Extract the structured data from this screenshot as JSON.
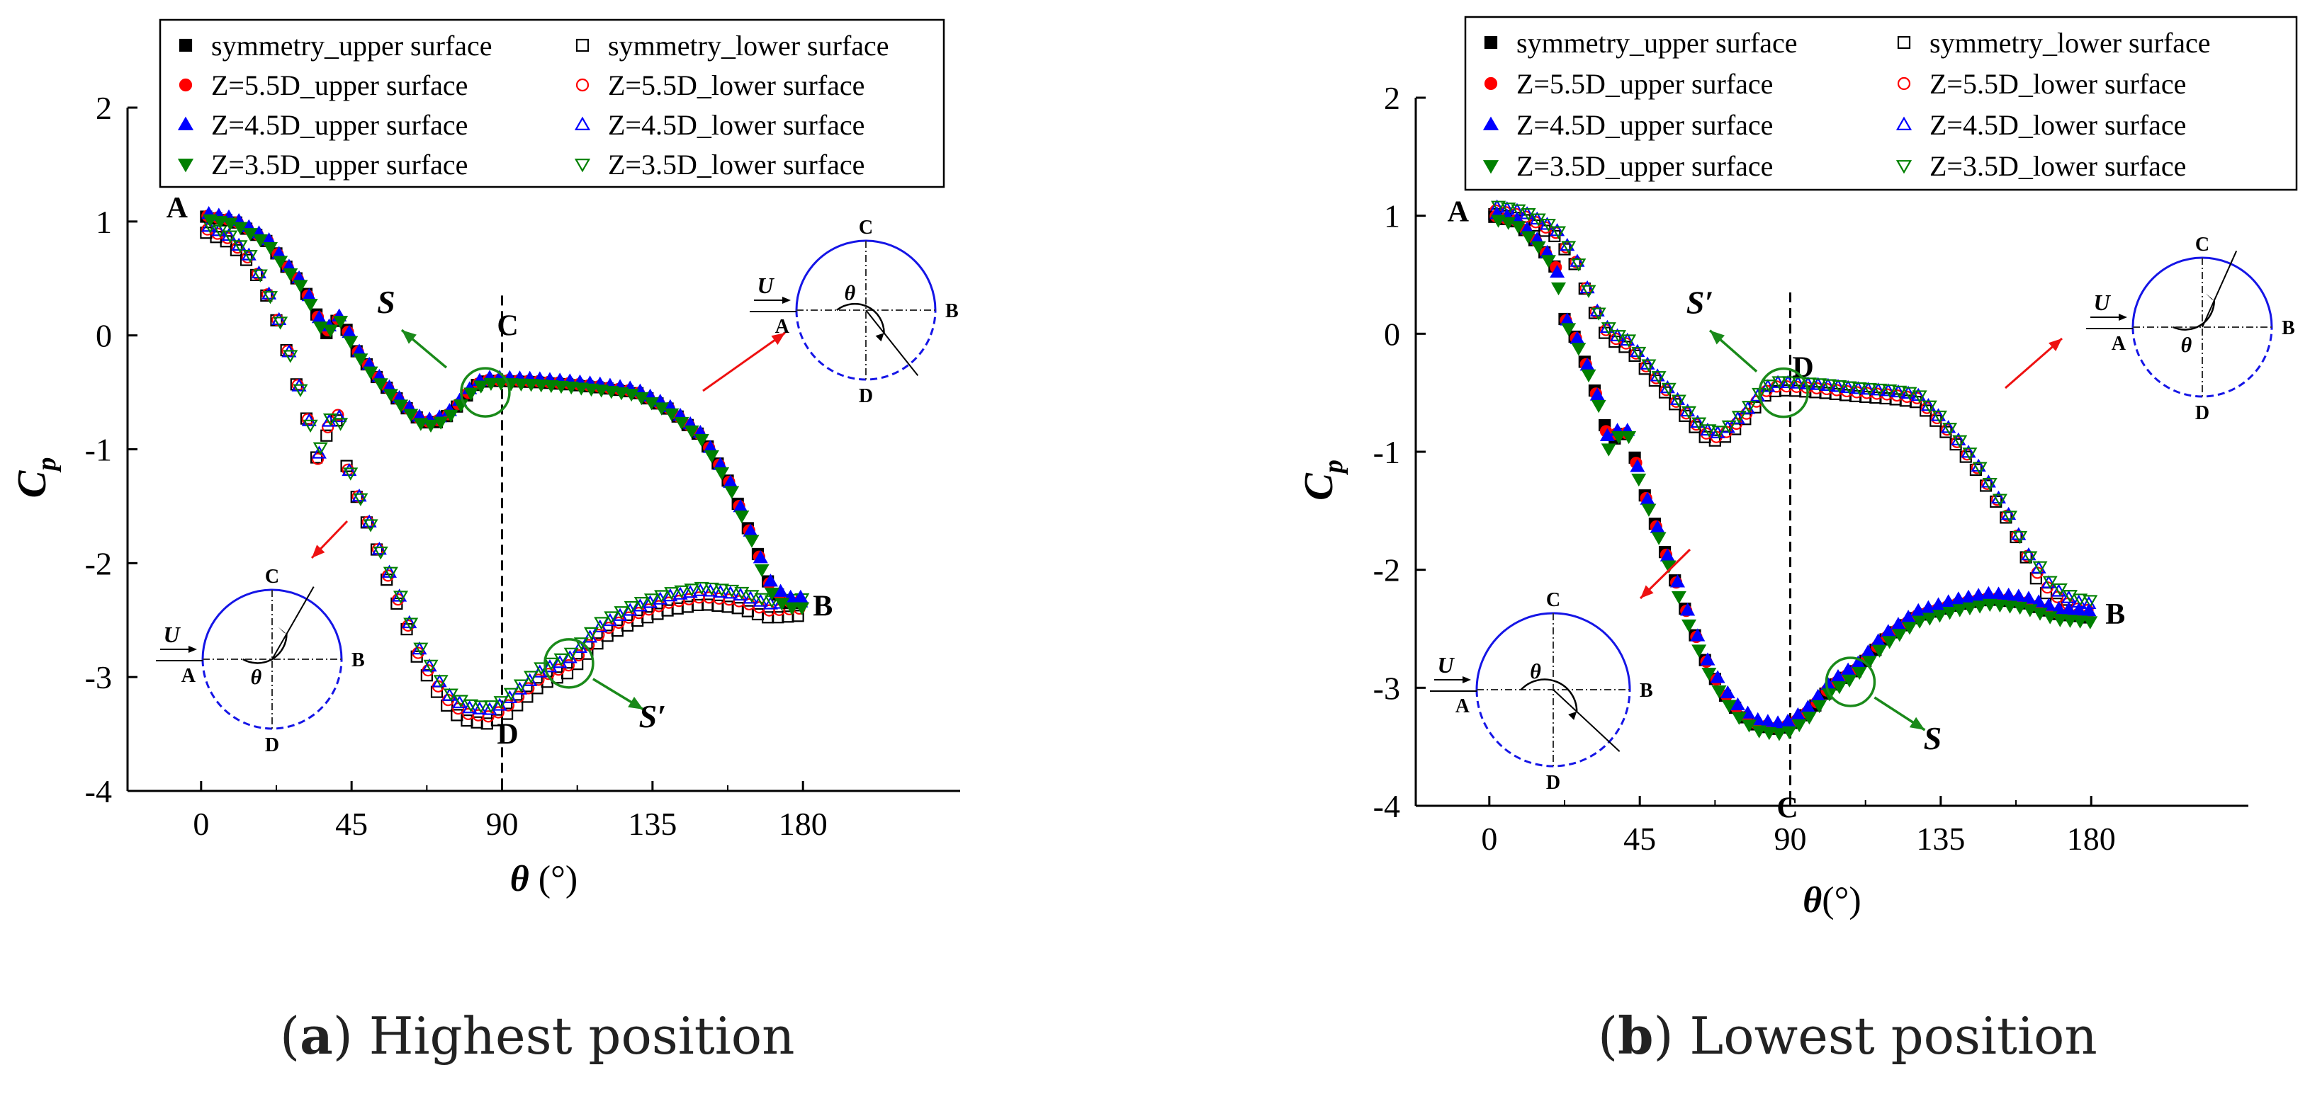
{
  "figure": {
    "panels": [
      {
        "letter": "a",
        "caption": "Highest position"
      },
      {
        "letter": "b",
        "caption": "Lowest position"
      }
    ]
  },
  "chart_data": [
    {
      "type": "scatter",
      "panel": "a",
      "title": "Highest position",
      "xlabel": "θ (°)",
      "ylabel": "Cp",
      "xlim": [
        -22,
        227
      ],
      "ylim": [
        -4,
        2
      ],
      "xticks": [
        0,
        45,
        90,
        135,
        180
      ],
      "yticks": [
        2,
        1,
        0,
        -1,
        -2,
        -3,
        -4
      ],
      "legend": {
        "position": "top",
        "entries": [
          {
            "label": "symmetry_upper surface",
            "marker": "square",
            "filled": true,
            "color": "#000000"
          },
          {
            "label": "symmetry_lower surface",
            "marker": "square",
            "filled": false,
            "color": "#000000"
          },
          {
            "label": "Z=5.5D_upper surface",
            "marker": "circle",
            "filled": true,
            "color": "#ff0000"
          },
          {
            "label": "Z=5.5D_lower surface",
            "marker": "circle",
            "filled": false,
            "color": "#ff0000"
          },
          {
            "label": "Z=4.5D_upper surface",
            "marker": "triangle-up",
            "filled": true,
            "color": "#0000ff"
          },
          {
            "label": "Z=4.5D_lower surface",
            "marker": "triangle-up",
            "filled": false,
            "color": "#0000ff"
          },
          {
            "label": "Z=3.5D_upper surface",
            "marker": "triangle-down",
            "filled": true,
            "color": "#008000"
          },
          {
            "label": "Z=3.5D_lower surface",
            "marker": "triangle-down",
            "filled": false,
            "color": "#008000"
          }
        ]
      },
      "vertical_line_x": 90,
      "curve_points": {
        "upper": [
          [
            0,
            1.05
          ],
          [
            10,
            1.0
          ],
          [
            20,
            0.82
          ],
          [
            25,
            0.62
          ],
          [
            30,
            0.45
          ],
          [
            34,
            0.22
          ],
          [
            37,
            0.0
          ],
          [
            40,
            0.12
          ],
          [
            42,
            0.15
          ],
          [
            46,
            -0.12
          ],
          [
            52,
            -0.35
          ],
          [
            60,
            -0.6
          ],
          [
            66,
            -0.76
          ],
          [
            70,
            -0.77
          ],
          [
            74,
            -0.7
          ],
          [
            78,
            -0.58
          ],
          [
            82,
            -0.44
          ],
          [
            86,
            -0.4
          ],
          [
            90,
            -0.4
          ],
          [
            100,
            -0.41
          ],
          [
            110,
            -0.43
          ],
          [
            120,
            -0.46
          ],
          [
            130,
            -0.5
          ],
          [
            140,
            -0.65
          ],
          [
            150,
            -0.9
          ],
          [
            158,
            -1.3
          ],
          [
            165,
            -1.8
          ],
          [
            170,
            -2.2
          ],
          [
            175,
            -2.35
          ],
          [
            180,
            -2.35
          ]
        ],
        "lower": [
          [
            0,
            0.95
          ],
          [
            8,
            0.85
          ],
          [
            15,
            0.65
          ],
          [
            20,
            0.35
          ],
          [
            24,
            0.05
          ],
          [
            28,
            -0.35
          ],
          [
            32,
            -0.75
          ],
          [
            35,
            -1.1
          ],
          [
            38,
            -0.8
          ],
          [
            41,
            -0.7
          ],
          [
            44,
            -1.2
          ],
          [
            50,
            -1.65
          ],
          [
            55,
            -2.05
          ],
          [
            60,
            -2.4
          ],
          [
            65,
            -2.8
          ],
          [
            70,
            -3.05
          ],
          [
            75,
            -3.25
          ],
          [
            80,
            -3.33
          ],
          [
            86,
            -3.35
          ],
          [
            90,
            -3.3
          ],
          [
            96,
            -3.15
          ],
          [
            102,
            -3.0
          ],
          [
            110,
            -2.9
          ],
          [
            120,
            -2.6
          ],
          [
            130,
            -2.45
          ],
          [
            140,
            -2.35
          ],
          [
            150,
            -2.3
          ],
          [
            160,
            -2.33
          ],
          [
            170,
            -2.42
          ],
          [
            180,
            -2.4
          ]
        ]
      },
      "annotations": {
        "A": {
          "x": 0,
          "y": 1.05
        },
        "B": {
          "x": 180,
          "y": -2.35
        },
        "C": {
          "x": 90,
          "y": -0.05
        },
        "D": {
          "x": 90,
          "y": -3.4
        },
        "S": {
          "text": "S",
          "circle_at": [
            85,
            -0.5
          ]
        },
        "S_prime": {
          "text": "S′",
          "circle_at": [
            110,
            -2.88
          ]
        }
      },
      "insets": [
        {
          "labels": [
            "C",
            "B",
            "D",
            "A"
          ],
          "flow": "U",
          "angle": "θ",
          "angle_from": "A",
          "solid_half": "upper"
        },
        {
          "labels": [
            "C",
            "B",
            "D",
            "A"
          ],
          "flow": "U",
          "angle": "θ",
          "angle_from": "A",
          "solid_half": "upper"
        }
      ]
    },
    {
      "type": "scatter",
      "panel": "b",
      "title": "Lowest position",
      "xlabel": "θ(°)",
      "ylabel": "Cp",
      "xlim": [
        -22,
        227
      ],
      "ylim": [
        -4,
        2
      ],
      "xticks": [
        0,
        45,
        90,
        135,
        180
      ],
      "yticks": [
        2,
        1,
        0,
        -1,
        -2,
        -3,
        -4
      ],
      "legend": {
        "position": "top",
        "entries": [
          {
            "label": "symmetry_upper surface",
            "marker": "square",
            "filled": true,
            "color": "#000000"
          },
          {
            "label": "symmetry_lower surface",
            "marker": "square",
            "filled": false,
            "color": "#000000"
          },
          {
            "label": "Z=5.5D_upper surface",
            "marker": "circle",
            "filled": true,
            "color": "#ff0000"
          },
          {
            "label": "Z=5.5D_lower surface",
            "marker": "circle",
            "filled": false,
            "color": "#ff0000"
          },
          {
            "label": "Z=4.5D_upper surface",
            "marker": "triangle-up",
            "filled": true,
            "color": "#0000ff"
          },
          {
            "label": "Z=4.5D_lower surface",
            "marker": "triangle-up",
            "filled": false,
            "color": "#0000ff"
          },
          {
            "label": "Z=3.5D_upper surface",
            "marker": "triangle-down",
            "filled": true,
            "color": "#008000"
          },
          {
            "label": "Z=3.5D_lower surface",
            "marker": "triangle-down",
            "filled": false,
            "color": "#008000"
          }
        ]
      },
      "vertical_line_x": 90,
      "curve_points": {
        "upper": [
          [
            0,
            1.0
          ],
          [
            8,
            0.95
          ],
          [
            15,
            0.75
          ],
          [
            20,
            0.55
          ],
          [
            22,
            0.15
          ],
          [
            26,
            -0.05
          ],
          [
            30,
            -0.35
          ],
          [
            34,
            -0.7
          ],
          [
            36,
            -1.0
          ],
          [
            38,
            -0.85
          ],
          [
            42,
            -0.85
          ],
          [
            45,
            -1.25
          ],
          [
            50,
            -1.65
          ],
          [
            55,
            -2.05
          ],
          [
            60,
            -2.45
          ],
          [
            65,
            -2.8
          ],
          [
            70,
            -3.05
          ],
          [
            75,
            -3.22
          ],
          [
            80,
            -3.32
          ],
          [
            86,
            -3.35
          ],
          [
            90,
            -3.33
          ],
          [
            96,
            -3.2
          ],
          [
            102,
            -3.0
          ],
          [
            110,
            -2.85
          ],
          [
            118,
            -2.6
          ],
          [
            128,
            -2.4
          ],
          [
            140,
            -2.3
          ],
          [
            150,
            -2.25
          ],
          [
            160,
            -2.28
          ],
          [
            170,
            -2.38
          ],
          [
            180,
            -2.4
          ]
        ],
        "lower": [
          [
            0,
            1.05
          ],
          [
            10,
            1.0
          ],
          [
            20,
            0.85
          ],
          [
            26,
            0.6
          ],
          [
            30,
            0.3
          ],
          [
            34,
            0.05
          ],
          [
            38,
            -0.05
          ],
          [
            42,
            -0.1
          ],
          [
            46,
            -0.25
          ],
          [
            52,
            -0.45
          ],
          [
            58,
            -0.65
          ],
          [
            64,
            -0.84
          ],
          [
            68,
            -0.88
          ],
          [
            72,
            -0.82
          ],
          [
            78,
            -0.65
          ],
          [
            82,
            -0.5
          ],
          [
            86,
            -0.45
          ],
          [
            90,
            -0.45
          ],
          [
            100,
            -0.47
          ],
          [
            110,
            -0.5
          ],
          [
            120,
            -0.52
          ],
          [
            128,
            -0.55
          ],
          [
            135,
            -0.75
          ],
          [
            145,
            -1.1
          ],
          [
            155,
            -1.55
          ],
          [
            162,
            -1.95
          ],
          [
            168,
            -2.2
          ],
          [
            175,
            -2.33
          ],
          [
            180,
            -2.35
          ]
        ]
      },
      "annotations": {
        "A": {
          "x": 0,
          "y": 1.0
        },
        "B": {
          "x": 180,
          "y": -2.35
        },
        "C": {
          "x": 90,
          "y": -3.75
        },
        "D": {
          "x": 90,
          "y": -0.15
        },
        "S": {
          "text": "S",
          "circle_at": [
            108,
            -2.95
          ]
        },
        "S_prime": {
          "text": "S′",
          "circle_at": [
            88,
            -0.5
          ]
        }
      },
      "insets": [
        {
          "labels": [
            "C",
            "B",
            "D",
            "A"
          ],
          "flow": "U",
          "angle": "θ",
          "angle_from": "A",
          "solid_half": "upper"
        },
        {
          "labels": [
            "C",
            "B",
            "D",
            "A"
          ],
          "flow": "U",
          "angle": "θ",
          "angle_from": "A",
          "solid_half": "upper"
        }
      ]
    }
  ]
}
